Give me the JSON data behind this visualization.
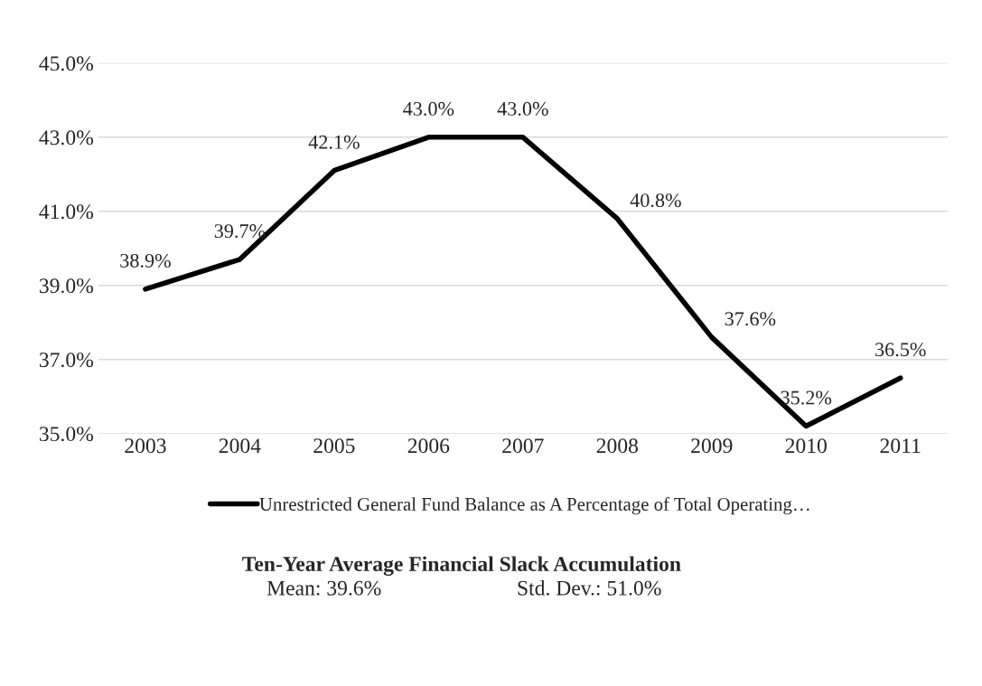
{
  "chart_data": {
    "type": "line",
    "title": "Ten-Year Average Financial Slack Accumulation",
    "categories": [
      "2003",
      "2004",
      "2005",
      "2006",
      "2007",
      "2008",
      "2009",
      "2010",
      "2011"
    ],
    "series": [
      {
        "name": "Unrestricted General Fund Balance as A Percentage of Total Operating…",
        "color": "#000000",
        "values": [
          38.9,
          39.7,
          42.1,
          43.0,
          43.0,
          40.8,
          37.6,
          35.2,
          36.5
        ],
        "value_labels": [
          "38.9%",
          "39.7%",
          "42.1%",
          "43.0%",
          "43.0%",
          "40.8%",
          "37.6%",
          "35.2%",
          "36.5%"
        ]
      }
    ],
    "ylim": [
      35,
      45
    ],
    "yticks": [
      {
        "value": 35,
        "label": "35.0%"
      },
      {
        "value": 37,
        "label": "37.0%"
      },
      {
        "value": 39,
        "label": "39.0%"
      },
      {
        "value": 41,
        "label": "41.0%"
      },
      {
        "value": 43,
        "label": "43.0%"
      },
      {
        "value": 45,
        "label": "45.0%"
      }
    ],
    "grid": "y",
    "legend": "bottom",
    "marker": "none",
    "line_style": "solid",
    "annotations": [
      "Mean: 39.6%",
      "Std. Dev.: 51.0%"
    ]
  }
}
